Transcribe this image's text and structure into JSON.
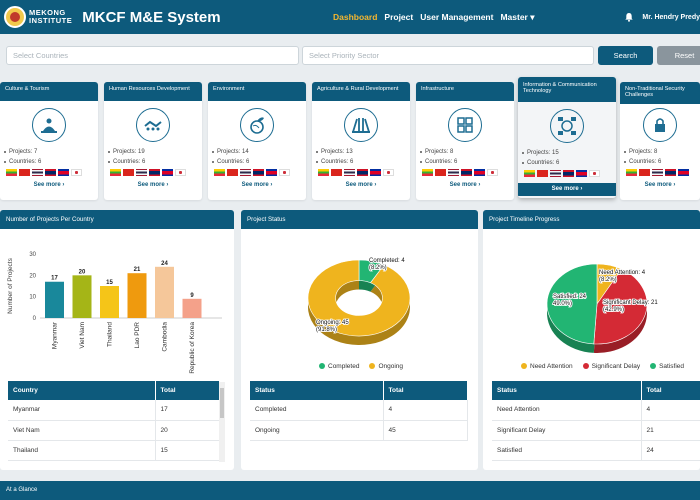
{
  "header": {
    "logo_line1": "MEKONG",
    "logo_line2": "INSTITUTE",
    "title": "MKCF M&E System",
    "menu": [
      "Dashboard",
      "Project",
      "User Management",
      "Master ▾"
    ],
    "user": "Mr. Hendry Predy"
  },
  "filters": {
    "countries_placeholder": "Select Countries",
    "sector_placeholder": "Select Priority Sector",
    "search_label": "Search",
    "reset_label": "Reset"
  },
  "sectors": [
    {
      "name": "Culture & Tourism",
      "projects": "Projects: 7",
      "countries": "Countries: 6",
      "see": "See more ›"
    },
    {
      "name": "Human Resources Development",
      "projects": "Projects: 19",
      "countries": "Countries: 6",
      "see": "See more ›"
    },
    {
      "name": "Environment",
      "projects": "Projects: 14",
      "countries": "Countries: 6",
      "see": "See more ›"
    },
    {
      "name": "Agriculture & Rural Development",
      "projects": "Projects: 13",
      "countries": "Countries: 6",
      "see": "See more ›"
    },
    {
      "name": "Infrastructure",
      "projects": "Projects: 8",
      "countries": "Countries: 6",
      "see": "See more ›"
    },
    {
      "name": "Information & Communication Technology",
      "projects": "Projects: 15",
      "countries": "Countries: 6",
      "see": "See more ›"
    },
    {
      "name": "Non-Traditional Security Challenges",
      "projects": "Projects: 8",
      "countries": "Countries: 6",
      "see": "See more ›"
    }
  ],
  "flag_colors": [
    "#fecb00",
    "#da251d",
    "#0055a4",
    "#ce1126",
    "#032ea1",
    "#ffffff"
  ],
  "panels": {
    "country_title": "Number of Projects Per Country",
    "status_title": "Project Status",
    "timeline_title": "Project Timeline Progress"
  },
  "chart_data": [
    {
      "type": "bar",
      "title": "",
      "xlabel": "",
      "ylabel": "Number of Projects",
      "ylim": [
        0,
        30
      ],
      "yticks": [
        0,
        10,
        20,
        30
      ],
      "categories": [
        "Myanmar",
        "Viet Nam",
        "Thailand",
        "Lao PDR",
        "Cambodia",
        "Republic of Korea"
      ],
      "values": [
        17,
        20,
        15,
        21,
        24,
        9
      ],
      "colors": [
        "#19889b",
        "#a5b517",
        "#f5c518",
        "#ef9a0e",
        "#f5c79a",
        "#f4a18a"
      ]
    },
    {
      "type": "pie",
      "title": "",
      "categories": [
        "Completed",
        "Ongoing"
      ],
      "values": [
        4,
        45
      ],
      "percents": [
        "8.2%",
        "91.8%"
      ],
      "labels": [
        "Completed: 4",
        "(8.2%)",
        "Ongoing: 45",
        "(91.8%)"
      ],
      "colors": [
        "#22b573",
        "#efb41e"
      ]
    },
    {
      "type": "pie",
      "title": "",
      "categories": [
        "Need Attention",
        "Significant Delay",
        "Satisfied"
      ],
      "values": [
        4,
        21,
        24
      ],
      "percents": [
        "8.2%",
        "42.9%",
        "49.0%"
      ],
      "labels": [
        "Need Attention: 4",
        "(8.2%)",
        "Significant Delay: 21",
        "(42.9%)",
        "Satisfied: 24",
        "49.0%)"
      ],
      "colors": [
        "#efb41e",
        "#d42a35",
        "#22b573"
      ]
    }
  ],
  "tables": {
    "country": {
      "headers": [
        "Country",
        "Total"
      ],
      "rows": [
        [
          "Myanmar",
          "17"
        ],
        [
          "Viet Nam",
          "20"
        ],
        [
          "Thailand",
          "15"
        ]
      ]
    },
    "status": {
      "headers": [
        "Status",
        "Total"
      ],
      "rows": [
        [
          "Completed",
          "4"
        ],
        [
          "Ongoing",
          "45"
        ]
      ]
    },
    "timeline": {
      "headers": [
        "Status",
        "Total"
      ],
      "rows": [
        [
          "Need Attention",
          "4"
        ],
        [
          "Significant Delay",
          "21"
        ],
        [
          "Satisfied",
          "24"
        ]
      ]
    }
  },
  "footer": {
    "label": "At a Glance"
  }
}
